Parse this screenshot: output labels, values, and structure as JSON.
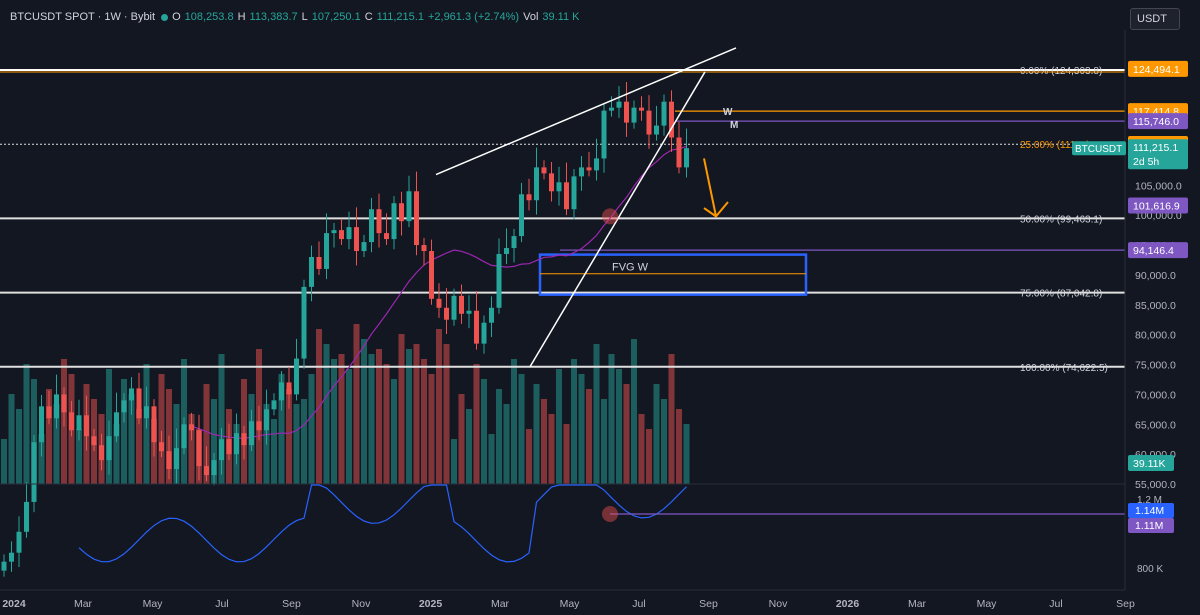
{
  "header": {
    "symbol": "BTCUSDT SPOT · 1W · Bybit",
    "open_label": "O",
    "open": "108,253.8",
    "high_label": "H",
    "high": "113,383.7",
    "low_label": "L",
    "low": "107,250.1",
    "close_label": "C",
    "close": "111,215.1",
    "change": "+2,961.3 (+2.74%)",
    "vol_label": "Vol",
    "vol": "39.11 K"
  },
  "currency_button": "USDT",
  "colors": {
    "bg": "#131722",
    "up": "#26a69a",
    "down": "#ef5350",
    "orange": "#ff9800",
    "purple": "#7e57c2",
    "blue": "#2962ff",
    "ma": "#9c27b0",
    "indicator": "#2962ff"
  },
  "chart_data": {
    "type": "candlestick",
    "timeframe": "1W",
    "ylim": [
      55000,
      131000
    ],
    "y_ticks": [
      "105,000.0",
      "100,000.0",
      "95,000.0",
      "90,000.0",
      "85,000.0",
      "80,000.0",
      "75,000.0",
      "70,000.0",
      "65,000.0",
      "60,000.0",
      "55,000.0"
    ],
    "x_ticks": [
      "2024",
      "Mar",
      "May",
      "Jul",
      "Sep",
      "Nov",
      "2025",
      "Mar",
      "May",
      "Jul",
      "Sep",
      "Nov",
      "2026",
      "Mar",
      "May",
      "Jul",
      "Sep"
    ],
    "price_sequence": [
      42000,
      43500,
      47000,
      52000,
      62000,
      68000,
      66000,
      70000,
      67000,
      64000,
      66500,
      63000,
      61500,
      59000,
      63000,
      67000,
      69000,
      71000,
      66000,
      68000,
      62000,
      60500,
      57500,
      61000,
      65000,
      64000,
      58000,
      56500,
      59000,
      62500,
      60000,
      63500,
      61500,
      65500,
      64000,
      67500,
      69000,
      72000,
      70000,
      76000,
      88000,
      93000,
      91000,
      97000,
      97500,
      96000,
      98000,
      94000,
      95500,
      101000,
      97000,
      96000,
      102000,
      99000,
      104000,
      95000,
      94000,
      86000,
      84500,
      82500,
      86500,
      83500,
      84000,
      78500,
      82000,
      84500,
      93500,
      94500,
      96500,
      103500,
      102500,
      108000,
      107000,
      104000,
      105500,
      101000,
      106500,
      108000,
      107500,
      109500,
      117500,
      118000,
      119000,
      115500,
      118000,
      117500,
      113500,
      115000,
      119000,
      113000,
      108000,
      111215
    ],
    "volume_note": "weekly volume histogram",
    "volume_last": "39.11K",
    "fibonacci": [
      {
        "level": "0.00%",
        "label": "0.00% (124,303.8)",
        "value": 124303.8
      },
      {
        "level": "25.00%",
        "label": "25.00% (111,...)",
        "value": 111883
      },
      {
        "level": "50.00%",
        "label": "50.00% (99,463.1)",
        "value": 99463.1
      },
      {
        "level": "75.00%",
        "label": "75.00% (87,042.8)",
        "value": 87042.8
      },
      {
        "level": "100.00%",
        "label": "100.00% (74,622.5)",
        "value": 74622.5
      }
    ],
    "horizontal_levels": [
      {
        "label": "117,414.8",
        "value": 117414.8,
        "color": "#ff9800"
      },
      {
        "label": "115,746.0",
        "value": 115746.0,
        "color": "#7e57c2"
      },
      {
        "label": "94,146.4",
        "value": 94146.4,
        "color": "#7e57c2"
      }
    ],
    "price_badges": [
      {
        "label": "124,494.1",
        "value": 124494.1,
        "color": "#ff9800"
      },
      {
        "label": "117,414.8",
        "value": 117414.8,
        "color": "#ff9800"
      },
      {
        "label": "115,746.0",
        "value": 115746.0,
        "color": "#7e57c2"
      },
      {
        "label": "111,915.7",
        "value": 111915.7,
        "color": "#ff9800"
      },
      {
        "label": "101,616.9",
        "value": 101616.9,
        "color": "#7e57c2"
      },
      {
        "label": "94,146.4",
        "value": 94146.4,
        "color": "#7e57c2"
      }
    ],
    "last_price": {
      "symbol": "BTCUSDT",
      "value": "111,215.1",
      "countdown": "2d 5h"
    },
    "fvg_box": {
      "label": "FVG W",
      "top": 93400,
      "bottom": 86700,
      "mid": 90200
    },
    "annotations": [
      "W",
      "M"
    ],
    "indicator_pane": {
      "ticks": [
        "1.2 M",
        "800 K"
      ],
      "badges": [
        "1.14M",
        "1.11M"
      ]
    }
  }
}
